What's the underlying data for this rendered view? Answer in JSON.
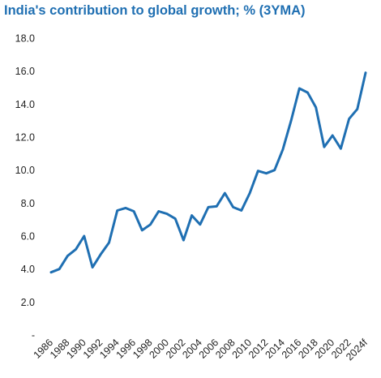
{
  "chart_data": {
    "type": "line",
    "title": "India's contribution to global growth; % (3YMA)",
    "xlabel": "",
    "ylabel": "",
    "ylim": [
      0,
      18
    ],
    "yticks": [
      "18.0",
      "16.0",
      "14.0",
      "12.0",
      "10.0",
      "8.0",
      "6.0",
      "4.0",
      "2.0",
      "-"
    ],
    "x": [
      "1986",
      "1987",
      "1988",
      "1989",
      "1990",
      "1991",
      "1992",
      "1993",
      "1994",
      "1995",
      "1996",
      "1997",
      "1998",
      "1999",
      "2000",
      "2001",
      "2002",
      "2003",
      "2004",
      "2005",
      "2006",
      "2007",
      "2008",
      "2009",
      "2010",
      "2011",
      "2012",
      "2013",
      "2014",
      "2015",
      "2016",
      "2017",
      "2018",
      "2019",
      "2020",
      "2021",
      "2022",
      "2023",
      "2024f"
    ],
    "xtick_labels": [
      "1986",
      "1988",
      "1990",
      "1992",
      "1994",
      "1996",
      "1998",
      "2000",
      "2002",
      "2004",
      "2006",
      "2008",
      "2010",
      "2012",
      "2014",
      "2016",
      "2018",
      "2020",
      "2022",
      "2024f"
    ],
    "series": [
      {
        "color": "#1f6fb2",
        "values": [
          3.8,
          4.0,
          4.8,
          5.2,
          6.0,
          4.1,
          4.9,
          5.6,
          7.55,
          7.7,
          7.5,
          6.35,
          6.7,
          7.5,
          7.35,
          7.05,
          5.75,
          7.25,
          6.7,
          7.75,
          7.8,
          8.6,
          7.75,
          7.55,
          8.6,
          9.95,
          9.8,
          10.0,
          11.25,
          13.0,
          14.95,
          14.7,
          13.8,
          11.4,
          12.1,
          11.3,
          13.1,
          13.7,
          15.9
        ]
      }
    ],
    "grid": false,
    "legend": "none"
  }
}
